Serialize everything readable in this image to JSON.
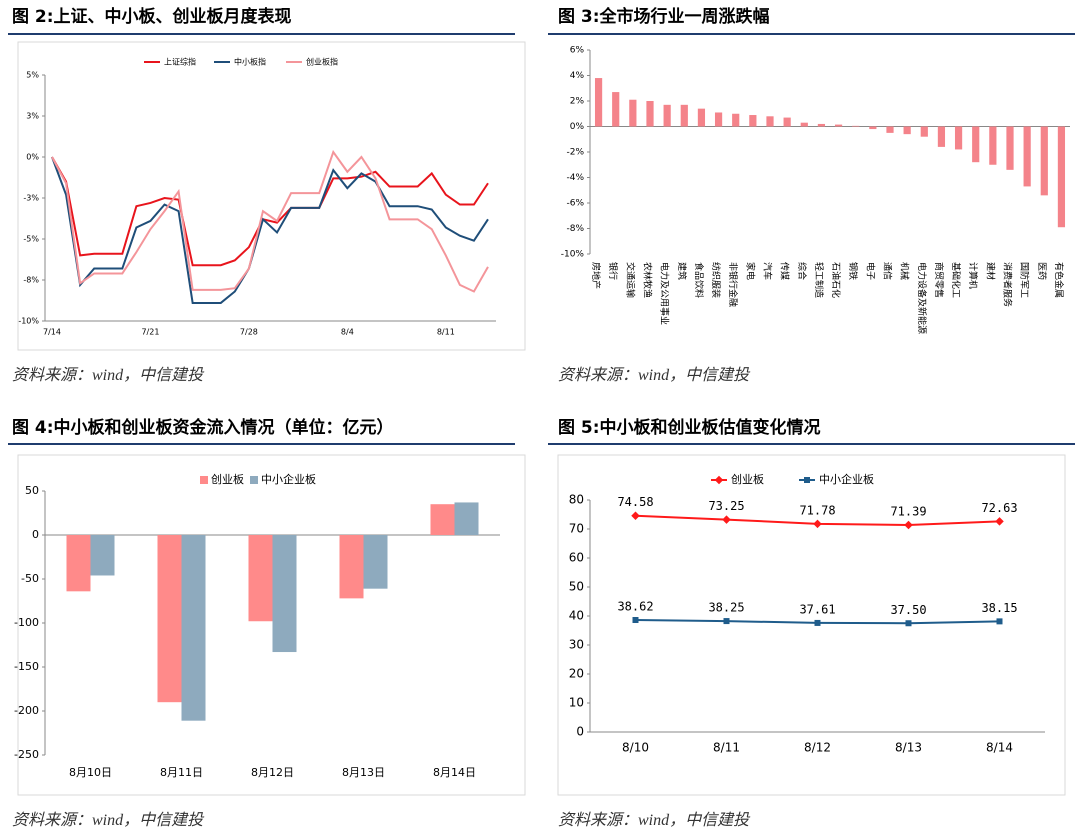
{
  "chart_data": [
    {
      "type": "line",
      "title": "图 2:上证、中小板、创业板月度表现",
      "source": "资料来源：wind，中信建投",
      "categories": [
        "7/14",
        null,
        null,
        null,
        null,
        null,
        null,
        "7/21",
        null,
        null,
        null,
        null,
        null,
        null,
        "7/28",
        null,
        null,
        null,
        null,
        null,
        null,
        "8/4",
        null,
        null,
        null,
        null,
        null,
        null,
        "8/11",
        null,
        null,
        null
      ],
      "series": [
        {
          "name": "上证综指",
          "color": "#e8141c",
          "values": [
            0,
            -1.5,
            -6,
            -5.9,
            -5.9,
            -5.9,
            -3,
            -2.8,
            -2.5,
            -2.6,
            -6.6,
            -6.6,
            -6.6,
            -6.3,
            -5.5,
            -3.8,
            -4,
            -3.1,
            -3.1,
            -3.1,
            -1.3,
            -1.3,
            -1.2,
            -0.9,
            -1.8,
            -1.8,
            -1.8,
            -1,
            -2.3,
            -2.9,
            -2.9,
            -1.6
          ]
        },
        {
          "name": "中小板指",
          "color": "#1f4e79",
          "values": [
            0,
            -2.3,
            -7.8,
            -6.8,
            -6.8,
            -6.8,
            -4.3,
            -3.9,
            -2.9,
            -3.3,
            -8.9,
            -8.9,
            -8.9,
            -8.2,
            -6.8,
            -3.8,
            -4.6,
            -3.1,
            -3.1,
            -3.1,
            -0.8,
            -1.9,
            -1,
            -1.5,
            -3,
            -3,
            -3,
            -3.2,
            -4.3,
            -4.8,
            -5.1,
            -3.8
          ]
        },
        {
          "name": "创业板指",
          "color": "#f4959a",
          "values": [
            0,
            -1.6,
            -7.7,
            -7.1,
            -7.1,
            -7.1,
            -5.8,
            -4.4,
            -3.3,
            -2.1,
            -8.1,
            -8.1,
            -8.1,
            -8,
            -6.8,
            -3.3,
            -3.9,
            -2.2,
            -2.2,
            -2.2,
            0.3,
            -0.9,
            0,
            -1.3,
            -3.8,
            -3.8,
            -3.8,
            -4.4,
            -6,
            -7.8,
            -8.2,
            -6.7
          ]
        }
      ],
      "ylim": [
        -10,
        5
      ],
      "yticks": [
        {
          "value": 5,
          "label": "5%"
        },
        {
          "value": 2.5,
          "label": "3%"
        },
        {
          "value": 0,
          "label": "0%"
        },
        {
          "value": -2.5,
          "label": "-3%"
        },
        {
          "value": -5,
          "label": "-5%"
        },
        {
          "value": -7.5,
          "label": "-8%"
        },
        {
          "value": -10,
          "label": "-10%"
        }
      ],
      "grid": false,
      "legend": "top"
    },
    {
      "type": "bar",
      "title": "图 3:全市场行业一周涨跌幅",
      "source": "资料来源：wind，中信建投",
      "categories": [
        "房地产",
        "银行",
        "交通运输",
        "农林牧渔",
        "电力及公用事业",
        "建筑",
        "食品饮料",
        "纺织服装",
        "非银行金融",
        "家电",
        "汽车",
        "传媒",
        "综合",
        "轻工制造",
        "石油石化",
        "钢铁",
        "电子",
        "通信",
        "机械",
        "电力设备及新能源",
        "商贸零售",
        "基础化工",
        "计算机",
        "建材",
        "消费者服务",
        "国防军工",
        "医药",
        "有色金属"
      ],
      "values": [
        3.8,
        2.7,
        2.1,
        2.0,
        1.7,
        1.7,
        1.4,
        1.1,
        1.0,
        0.9,
        0.8,
        0.7,
        0.3,
        0.2,
        0.15,
        0.05,
        -0.2,
        -0.5,
        -0.6,
        -0.8,
        -1.6,
        -1.8,
        -2.8,
        -3.0,
        -3.4,
        -4.7,
        -5.4,
        -7.9
      ],
      "color": "#f4838a",
      "ylim": [
        -10,
        6
      ],
      "yticks": [
        {
          "value": 6,
          "label": "6%"
        },
        {
          "value": 4,
          "label": "4%"
        },
        {
          "value": 2,
          "label": "2%"
        },
        {
          "value": 0,
          "label": "0%"
        },
        {
          "value": -2,
          "label": "-2%"
        },
        {
          "value": -4,
          "label": "-4%"
        },
        {
          "value": -6,
          "label": "-6%"
        },
        {
          "value": -8,
          "label": "-8%"
        },
        {
          "value": -10,
          "label": "-10%"
        }
      ],
      "grid": false
    },
    {
      "type": "bar",
      "title": "图 4:中小板和创业板资金流入情况（单位：亿元）",
      "source": "资料来源：wind，中信建投",
      "categories": [
        "8月10日",
        "8月11日",
        "8月12日",
        "8月13日",
        "8月14日"
      ],
      "series": [
        {
          "name": "创业板",
          "color": "#ff8a8a",
          "values": [
            -64,
            -190,
            -98,
            -72,
            35
          ]
        },
        {
          "name": "中小企业板",
          "color": "#8eaabe",
          "values": [
            -46,
            -211,
            -133,
            -61,
            37
          ]
        }
      ],
      "ylim": [
        -250,
        50
      ],
      "yticks": [
        50,
        0,
        -50,
        -100,
        -150,
        -200,
        -250
      ],
      "grid": false,
      "legend": "top"
    },
    {
      "type": "line",
      "title": "图 5:中小板和创业板估值变化情况",
      "source": "资料来源：wind，中信建投",
      "categories": [
        "8/10",
        "8/11",
        "8/12",
        "8/13",
        "8/14"
      ],
      "series": [
        {
          "name": "创业板",
          "color": "#ff1a1a",
          "marker": "diamond",
          "values": [
            74.58,
            73.25,
            71.78,
            71.39,
            72.63
          ],
          "value_labels": [
            "74.58",
            "73.25",
            "71.78",
            "71.39",
            "72.63"
          ]
        },
        {
          "name": "中小企业板",
          "color": "#1f5c8b",
          "marker": "square",
          "values": [
            38.62,
            38.25,
            37.61,
            37.5,
            38.15
          ],
          "value_labels": [
            "38.62",
            "38.25",
            "37.61",
            "37.50",
            "38.15"
          ]
        }
      ],
      "ylim": [
        0,
        80
      ],
      "yticks": [
        0,
        10,
        20,
        30,
        40,
        50,
        60,
        70,
        80
      ],
      "grid": false,
      "legend": "top"
    }
  ]
}
